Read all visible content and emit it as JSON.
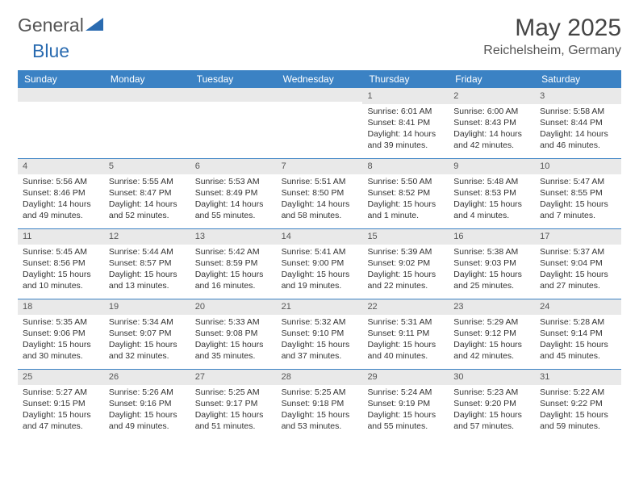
{
  "logo": {
    "part1": "General",
    "part2": "Blue",
    "part2_color": "#2a6bb0",
    "icon_color": "#2a6bb0"
  },
  "title": "May 2025",
  "location": "Reichelsheim, Germany",
  "header_bg": "#3b82c4",
  "divider_color": "#3b82c4",
  "daynum_bg": "#e9e9e9",
  "weekdays": [
    "Sunday",
    "Monday",
    "Tuesday",
    "Wednesday",
    "Thursday",
    "Friday",
    "Saturday"
  ],
  "weeks": [
    [
      null,
      null,
      null,
      null,
      {
        "n": "1",
        "sr": "6:01 AM",
        "ss": "8:41 PM",
        "dl": "14 hours and 39 minutes."
      },
      {
        "n": "2",
        "sr": "6:00 AM",
        "ss": "8:43 PM",
        "dl": "14 hours and 42 minutes."
      },
      {
        "n": "3",
        "sr": "5:58 AM",
        "ss": "8:44 PM",
        "dl": "14 hours and 46 minutes."
      }
    ],
    [
      {
        "n": "4",
        "sr": "5:56 AM",
        "ss": "8:46 PM",
        "dl": "14 hours and 49 minutes."
      },
      {
        "n": "5",
        "sr": "5:55 AM",
        "ss": "8:47 PM",
        "dl": "14 hours and 52 minutes."
      },
      {
        "n": "6",
        "sr": "5:53 AM",
        "ss": "8:49 PM",
        "dl": "14 hours and 55 minutes."
      },
      {
        "n": "7",
        "sr": "5:51 AM",
        "ss": "8:50 PM",
        "dl": "14 hours and 58 minutes."
      },
      {
        "n": "8",
        "sr": "5:50 AM",
        "ss": "8:52 PM",
        "dl": "15 hours and 1 minute."
      },
      {
        "n": "9",
        "sr": "5:48 AM",
        "ss": "8:53 PM",
        "dl": "15 hours and 4 minutes."
      },
      {
        "n": "10",
        "sr": "5:47 AM",
        "ss": "8:55 PM",
        "dl": "15 hours and 7 minutes."
      }
    ],
    [
      {
        "n": "11",
        "sr": "5:45 AM",
        "ss": "8:56 PM",
        "dl": "15 hours and 10 minutes."
      },
      {
        "n": "12",
        "sr": "5:44 AM",
        "ss": "8:57 PM",
        "dl": "15 hours and 13 minutes."
      },
      {
        "n": "13",
        "sr": "5:42 AM",
        "ss": "8:59 PM",
        "dl": "15 hours and 16 minutes."
      },
      {
        "n": "14",
        "sr": "5:41 AM",
        "ss": "9:00 PM",
        "dl": "15 hours and 19 minutes."
      },
      {
        "n": "15",
        "sr": "5:39 AM",
        "ss": "9:02 PM",
        "dl": "15 hours and 22 minutes."
      },
      {
        "n": "16",
        "sr": "5:38 AM",
        "ss": "9:03 PM",
        "dl": "15 hours and 25 minutes."
      },
      {
        "n": "17",
        "sr": "5:37 AM",
        "ss": "9:04 PM",
        "dl": "15 hours and 27 minutes."
      }
    ],
    [
      {
        "n": "18",
        "sr": "5:35 AM",
        "ss": "9:06 PM",
        "dl": "15 hours and 30 minutes."
      },
      {
        "n": "19",
        "sr": "5:34 AM",
        "ss": "9:07 PM",
        "dl": "15 hours and 32 minutes."
      },
      {
        "n": "20",
        "sr": "5:33 AM",
        "ss": "9:08 PM",
        "dl": "15 hours and 35 minutes."
      },
      {
        "n": "21",
        "sr": "5:32 AM",
        "ss": "9:10 PM",
        "dl": "15 hours and 37 minutes."
      },
      {
        "n": "22",
        "sr": "5:31 AM",
        "ss": "9:11 PM",
        "dl": "15 hours and 40 minutes."
      },
      {
        "n": "23",
        "sr": "5:29 AM",
        "ss": "9:12 PM",
        "dl": "15 hours and 42 minutes."
      },
      {
        "n": "24",
        "sr": "5:28 AM",
        "ss": "9:14 PM",
        "dl": "15 hours and 45 minutes."
      }
    ],
    [
      {
        "n": "25",
        "sr": "5:27 AM",
        "ss": "9:15 PM",
        "dl": "15 hours and 47 minutes."
      },
      {
        "n": "26",
        "sr": "5:26 AM",
        "ss": "9:16 PM",
        "dl": "15 hours and 49 minutes."
      },
      {
        "n": "27",
        "sr": "5:25 AM",
        "ss": "9:17 PM",
        "dl": "15 hours and 51 minutes."
      },
      {
        "n": "28",
        "sr": "5:25 AM",
        "ss": "9:18 PM",
        "dl": "15 hours and 53 minutes."
      },
      {
        "n": "29",
        "sr": "5:24 AM",
        "ss": "9:19 PM",
        "dl": "15 hours and 55 minutes."
      },
      {
        "n": "30",
        "sr": "5:23 AM",
        "ss": "9:20 PM",
        "dl": "15 hours and 57 minutes."
      },
      {
        "n": "31",
        "sr": "5:22 AM",
        "ss": "9:22 PM",
        "dl": "15 hours and 59 minutes."
      }
    ]
  ],
  "labels": {
    "sunrise": "Sunrise: ",
    "sunset": "Sunset: ",
    "daylight": "Daylight: "
  }
}
